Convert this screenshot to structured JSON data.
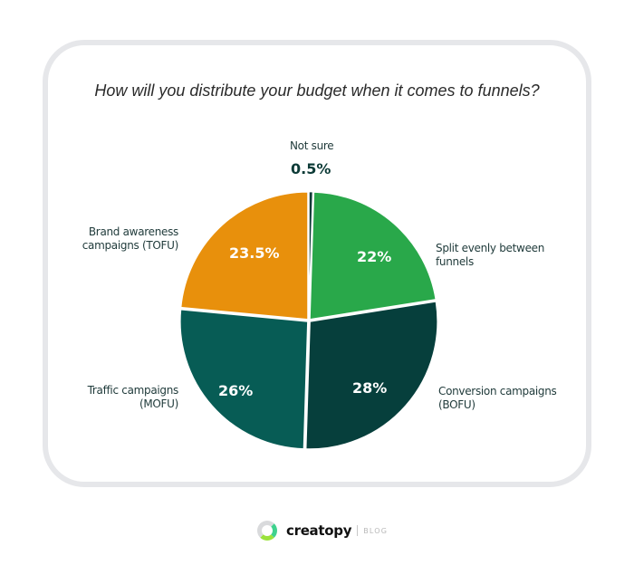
{
  "title": "How will you distribute your budget when it comes to funnels?",
  "chart_data": {
    "type": "pie",
    "title": "How will you distribute your budget when it comes to funnels?",
    "categories": [
      "Not sure",
      "Split evenly between funnels",
      "Conversion campaigns (BOFU)",
      "Traffic campaigns (MOFU)",
      "Brand awareness campaigns (TOFU)"
    ],
    "values": [
      0.5,
      22,
      28,
      26,
      23.5
    ],
    "labels": [
      "0.5%",
      "22%",
      "28%",
      "26%",
      "23.5%"
    ],
    "colors": [
      "#0d3b37",
      "#29a84a",
      "#063f3c",
      "#075c55",
      "#e8900c"
    ],
    "legend": "none (direct labels)"
  },
  "labels": {
    "not_sure": "Not sure",
    "not_sure_pct": "0.5%",
    "split_line1": "Split evenly between",
    "split_line2": "funnels",
    "split_pct": "22%",
    "bofu_line1": "Conversion campaigns",
    "bofu_line2": "(BOFU)",
    "bofu_pct": "28%",
    "mofu_line1": "Traffic campaigns",
    "mofu_line2": "(MOFU)",
    "mofu_pct": "26%",
    "tofu_line1": "Brand awareness",
    "tofu_line2": "campaigns (TOFU)",
    "tofu_pct": "23.5%"
  },
  "footer": {
    "brand": "creatopy",
    "section": "BLOG"
  }
}
